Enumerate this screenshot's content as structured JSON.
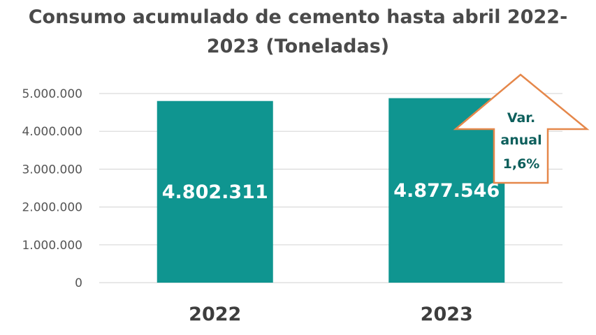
{
  "chart_data": {
    "type": "bar",
    "title_line1": "Consumo acumulado de cemento hasta abril 2022-",
    "title_line2": "2023 (Toneladas)",
    "categories": [
      "2022",
      "2023"
    ],
    "values": [
      4802311,
      4877546
    ],
    "data_labels": [
      "4.802.311",
      "4.877.546"
    ],
    "ylim": [
      0,
      5000000
    ],
    "yticks": [
      0,
      1000000,
      2000000,
      3000000,
      4000000,
      5000000
    ],
    "ytick_labels": [
      "0",
      "1.000.000",
      "2.000.000",
      "3.000.000",
      "4.000.000",
      "5.000.000"
    ],
    "grid": true,
    "bar_color": "#0f9590",
    "annotation": {
      "lines": [
        "Var.",
        "anual",
        "1,6%"
      ],
      "shape": "up-arrow",
      "border_color": "#e5874a",
      "text_color": "#0d5f5c"
    }
  }
}
